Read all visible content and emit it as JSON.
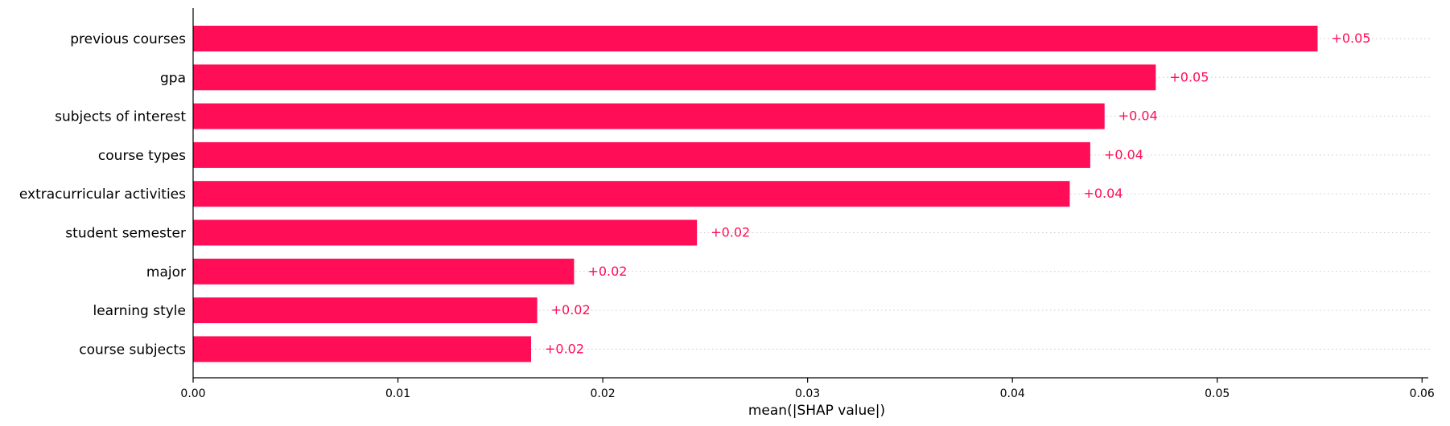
{
  "chart_data": {
    "type": "bar",
    "orientation": "horizontal",
    "categories": [
      "previous courses",
      "gpa",
      "subjects of interest",
      "course types",
      "extracurricular activities",
      "student semester",
      "major",
      "learning style",
      "course subjects"
    ],
    "values": [
      0.0549,
      0.047,
      0.0445,
      0.0438,
      0.0428,
      0.0246,
      0.0186,
      0.0168,
      0.0165
    ],
    "data_labels": [
      "+0.05",
      "+0.05",
      "+0.04",
      "+0.04",
      "+0.04",
      "+0.02",
      "+0.02",
      "+0.02",
      "+0.02"
    ],
    "xlabel": "mean(|SHAP value|)",
    "ylabel": "",
    "title": "",
    "xlim": [
      0,
      0.0605
    ],
    "xticks": [
      0.0,
      0.01,
      0.02,
      0.03,
      0.04,
      0.05,
      0.06
    ],
    "xtick_labels": [
      "0.00",
      "0.01",
      "0.02",
      "0.03",
      "0.04",
      "0.05",
      "0.06"
    ],
    "grid": "dotted horizontal lines per bar",
    "bar_color": "#ff0d57",
    "label_color": "#ff0d57",
    "grid_color": "#cccccc"
  }
}
